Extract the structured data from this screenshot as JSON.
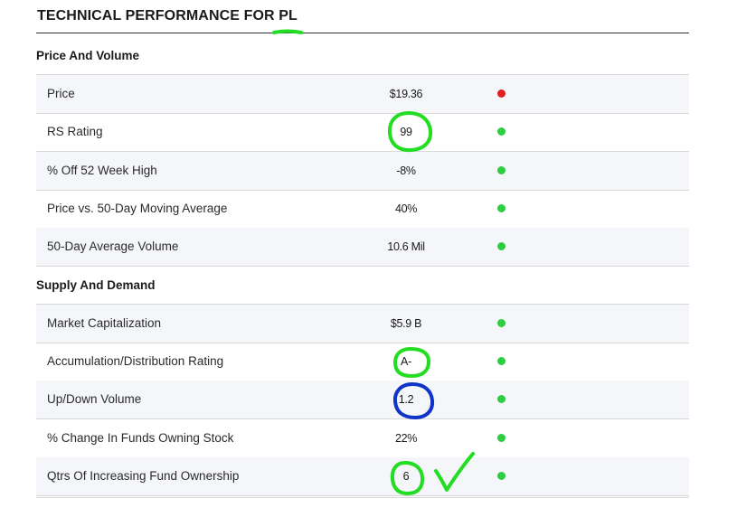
{
  "page": {
    "title": "TECHNICAL PERFORMANCE FOR PL"
  },
  "sections": [
    {
      "title": "Price And Volume",
      "rows": [
        {
          "label": "Price",
          "value": "$19.36",
          "status": "red"
        },
        {
          "label": "RS Rating",
          "value": "99",
          "status": "green"
        },
        {
          "label": "% Off 52 Week High",
          "value": "-8%",
          "status": "green"
        },
        {
          "label": "Price vs. 50-Day Moving Average",
          "value": "40%",
          "status": "green"
        },
        {
          "label": "50-Day Average Volume",
          "value": "10.6 Mil",
          "status": "green"
        }
      ]
    },
    {
      "title": "Supply And Demand",
      "rows": [
        {
          "label": "Market Capitalization",
          "value": "$5.9 B",
          "status": "green"
        },
        {
          "label": "Accumulation/Distribution Rating",
          "value": "A-",
          "status": "green"
        },
        {
          "label": "Up/Down Volume",
          "value": "1.2",
          "status": "green"
        },
        {
          "label": "% Change In Funds Owning Stock",
          "value": "22%",
          "status": "green"
        },
        {
          "label": "Qtrs Of Increasing Fund Ownership",
          "value": "6",
          "status": "green"
        }
      ]
    }
  ],
  "colors": {
    "status_green": "#2ecc40",
    "status_red": "#e02020",
    "annotation_green": "#22dd22",
    "annotation_blue": "#1034c8"
  },
  "annotations": [
    {
      "shape": "underline",
      "color": "annotation_green",
      "target": "page-title"
    },
    {
      "shape": "circle",
      "color": "annotation_green",
      "target": "RS Rating value"
    },
    {
      "shape": "circle",
      "color": "annotation_green",
      "target": "Accumulation/Distribution Rating value"
    },
    {
      "shape": "circle",
      "color": "annotation_blue",
      "target": "Up/Down Volume value"
    },
    {
      "shape": "circle",
      "color": "annotation_green",
      "target": "Qtrs Of Increasing Fund Ownership value"
    },
    {
      "shape": "checkmark",
      "color": "annotation_green",
      "target": "Qtrs Of Increasing Fund Ownership"
    }
  ]
}
